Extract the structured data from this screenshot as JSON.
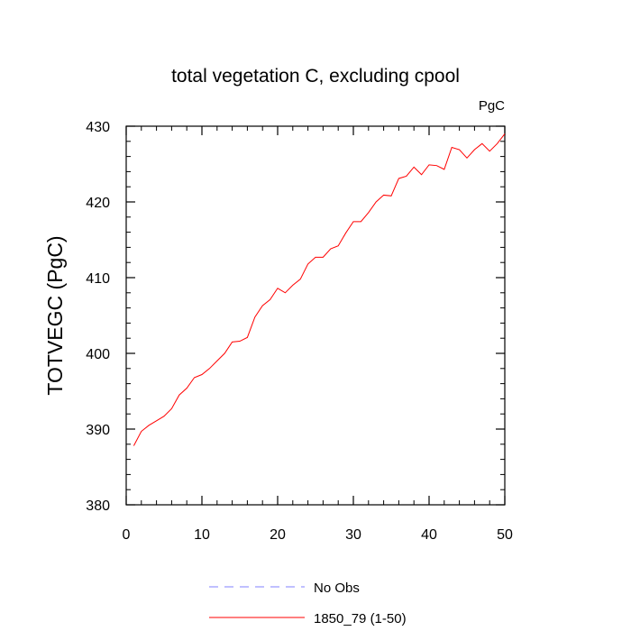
{
  "chart_data": {
    "type": "line",
    "title": "total vegetation C, excluding cpool",
    "units_label": "PgC",
    "xlabel": "",
    "ylabel": "TOTVEGC  (PgC)",
    "xlim": [
      0,
      50
    ],
    "ylim": [
      380,
      430
    ],
    "x_ticks": [
      0,
      10,
      20,
      30,
      40,
      50
    ],
    "y_ticks": [
      380,
      390,
      400,
      410,
      420,
      430
    ],
    "x_minor_step": 2,
    "y_minor_step": 2,
    "grid": false,
    "legend_position": "bottom",
    "series": [
      {
        "name": "1850_79 (1-50)",
        "color": "#ff0000",
        "style": "solid",
        "x": [
          1,
          2,
          3,
          4,
          5,
          6,
          7,
          8,
          9,
          10,
          11,
          12,
          13,
          14,
          15,
          16,
          17,
          18,
          19,
          20,
          21,
          22,
          23,
          24,
          25,
          26,
          27,
          28,
          29,
          30,
          31,
          32,
          33,
          34,
          35,
          36,
          37,
          38,
          39,
          40,
          41,
          42,
          43,
          44,
          45,
          46,
          47,
          48,
          49,
          50
        ],
        "values": [
          387.8,
          389.7,
          390.5,
          391.1,
          391.7,
          392.7,
          394.5,
          395.4,
          396.8,
          397.2,
          398.0,
          399.0,
          400.0,
          401.5,
          401.6,
          402.1,
          404.8,
          406.3,
          407.1,
          408.6,
          408.0,
          409.0,
          409.8,
          411.8,
          412.7,
          412.7,
          413.8,
          414.2,
          415.9,
          417.4,
          417.4,
          418.6,
          420.0,
          420.9,
          420.8,
          423.1,
          423.4,
          424.6,
          423.6,
          424.9,
          424.8,
          424.3,
          427.2,
          426.9,
          425.8,
          426.9,
          427.7,
          426.7,
          427.7,
          429.0
        ]
      },
      {
        "name": "No Obs",
        "color": "#8080ff",
        "style": "dashed",
        "x": [],
        "values": []
      }
    ]
  }
}
